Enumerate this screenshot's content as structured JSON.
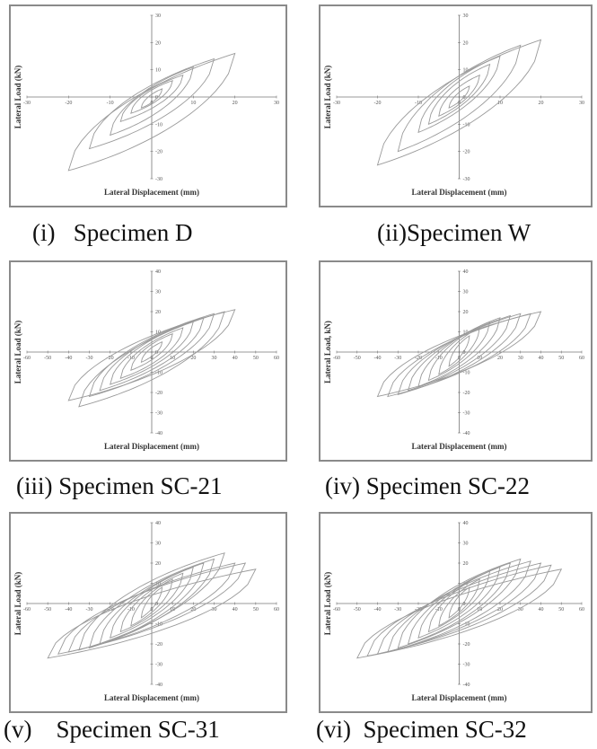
{
  "panels": [
    {
      "caption": "(i)   Specimen D",
      "chart_data": {
        "type": "line",
        "xlabel": "Lateral Displacement (mm)",
        "ylabel": "Lateral Load (kN)",
        "xlim": [
          -30,
          30
        ],
        "ylim": [
          -30,
          30
        ],
        "xticks": [
          -30,
          -20,
          -10,
          0,
          10,
          20,
          30
        ],
        "yticks": [
          -30,
          -20,
          -10,
          0,
          10,
          20,
          30
        ],
        "grid": false,
        "loops": [
          {
            "dpos": 2.5,
            "dneg": -2.5,
            "fpos": 3,
            "fneg": -4
          },
          {
            "dpos": 5,
            "dneg": -5,
            "fpos": 6,
            "fneg": -6
          },
          {
            "dpos": 7.5,
            "dneg": -7.5,
            "fpos": 8,
            "fneg": -9
          },
          {
            "dpos": 10,
            "dneg": -10,
            "fpos": 11,
            "fneg": -14
          },
          {
            "dpos": 15,
            "dneg": -15,
            "fpos": 14,
            "fneg": -19
          },
          {
            "dpos": 20,
            "dneg": -20,
            "fpos": 16,
            "fneg": -27
          }
        ]
      }
    },
    {
      "caption": "(ii)Specimen W",
      "chart_data": {
        "type": "line",
        "xlabel": "Lateral Displacement (mm)",
        "ylabel": "Lateral Load (kN)",
        "xlim": [
          -30,
          30
        ],
        "ylim": [
          -30,
          30
        ],
        "xticks": [
          -30,
          -20,
          -10,
          0,
          10,
          20,
          30
        ],
        "yticks": [
          -30,
          -20,
          -10,
          0,
          10,
          20,
          30
        ],
        "grid": false,
        "loops": [
          {
            "dpos": 2.5,
            "dneg": -2.5,
            "fpos": 4,
            "fneg": -4
          },
          {
            "dpos": 5,
            "dneg": -5,
            "fpos": 8,
            "fneg": -7
          },
          {
            "dpos": 7.5,
            "dneg": -7.5,
            "fpos": 12,
            "fneg": -10
          },
          {
            "dpos": 10,
            "dneg": -10,
            "fpos": 15,
            "fneg": -13
          },
          {
            "dpos": 15,
            "dneg": -15,
            "fpos": 19,
            "fneg": -20
          },
          {
            "dpos": 20,
            "dneg": -20,
            "fpos": 21,
            "fneg": -25
          }
        ]
      }
    },
    {
      "caption": "(iii) Specimen SC-21",
      "chart_data": {
        "type": "line",
        "xlabel": "Lateral Displacement (mm)",
        "ylabel": "Lateral Load (kN)",
        "xlim": [
          -60,
          60
        ],
        "ylim": [
          -40,
          40
        ],
        "xticks": [
          -60,
          -50,
          -40,
          -30,
          -20,
          -10,
          0,
          10,
          20,
          30,
          40,
          50,
          60
        ],
        "yticks": [
          -40,
          -30,
          -20,
          -10,
          0,
          10,
          20,
          30,
          40
        ],
        "grid": false,
        "loops": [
          {
            "dpos": 5,
            "dneg": -5,
            "fpos": 5,
            "fneg": -5
          },
          {
            "dpos": 10,
            "dneg": -10,
            "fpos": 9,
            "fneg": -9
          },
          {
            "dpos": 15,
            "dneg": -15,
            "fpos": 12,
            "fneg": -13
          },
          {
            "dpos": 20,
            "dneg": -20,
            "fpos": 15,
            "fneg": -16
          },
          {
            "dpos": 25,
            "dneg": -25,
            "fpos": 17,
            "fneg": -19
          },
          {
            "dpos": 30,
            "dneg": -30,
            "fpos": 19,
            "fneg": -22
          },
          {
            "dpos": 35,
            "dneg": -35,
            "fpos": 20,
            "fneg": -27
          },
          {
            "dpos": 40,
            "dneg": -40,
            "fpos": 21,
            "fneg": -24
          }
        ]
      }
    },
    {
      "caption": "(iv) Specimen SC-22",
      "chart_data": {
        "type": "line",
        "xlabel": "Lateral Displacement (mm)",
        "ylabel": "Lateral Load, kN)",
        "xlim": [
          -60,
          60
        ],
        "ylim": [
          -40,
          40
        ],
        "xticks": [
          -60,
          -50,
          -40,
          -30,
          -20,
          -10,
          0,
          10,
          20,
          30,
          40,
          50,
          60
        ],
        "yticks": [
          -40,
          -30,
          -20,
          -10,
          0,
          10,
          20,
          30,
          40
        ],
        "grid": false,
        "loops": [
          {
            "dpos": 5,
            "dneg": -5,
            "fpos": 8,
            "fneg": -7
          },
          {
            "dpos": 10,
            "dneg": -10,
            "fpos": 12,
            "fneg": -11
          },
          {
            "dpos": 15,
            "dneg": -15,
            "fpos": 15,
            "fneg": -14
          },
          {
            "dpos": 20,
            "dneg": -20,
            "fpos": 17,
            "fneg": -17
          },
          {
            "dpos": 25,
            "dneg": -25,
            "fpos": 18,
            "fneg": -19
          },
          {
            "dpos": 30,
            "dneg": -30,
            "fpos": 19,
            "fneg": -21
          },
          {
            "dpos": 35,
            "dneg": -35,
            "fpos": 19,
            "fneg": -22
          },
          {
            "dpos": 40,
            "dneg": -40,
            "fpos": 20,
            "fneg": -22
          }
        ]
      }
    },
    {
      "caption": "(v)    Specimen SC-31",
      "chart_data": {
        "type": "line",
        "xlabel": "Lateral Displacement (mm)",
        "ylabel": "Lateral Load (kN)",
        "xlim": [
          -60,
          60
        ],
        "ylim": [
          -40,
          40
        ],
        "xticks": [
          -60,
          -50,
          -40,
          -30,
          -20,
          -10,
          0,
          10,
          20,
          30,
          40,
          50,
          60
        ],
        "yticks": [
          -40,
          -30,
          -20,
          -10,
          0,
          10,
          20,
          30,
          40
        ],
        "grid": false,
        "loops": [
          {
            "dpos": 5,
            "dneg": -5,
            "fpos": 8,
            "fneg": -7
          },
          {
            "dpos": 10,
            "dneg": -10,
            "fpos": 12,
            "fneg": -11
          },
          {
            "dpos": 15,
            "dneg": -15,
            "fpos": 15,
            "fneg": -14
          },
          {
            "dpos": 20,
            "dneg": -20,
            "fpos": 18,
            "fneg": -17
          },
          {
            "dpos": 25,
            "dneg": -25,
            "fpos": 20,
            "fneg": -20
          },
          {
            "dpos": 30,
            "dneg": -30,
            "fpos": 22,
            "fneg": -22
          },
          {
            "dpos": 35,
            "dneg": -35,
            "fpos": 25,
            "fneg": -23
          },
          {
            "dpos": 40,
            "dneg": -40,
            "fpos": 20,
            "fneg": -24
          },
          {
            "dpos": 45,
            "dneg": -45,
            "fpos": 20,
            "fneg": -25
          },
          {
            "dpos": 50,
            "dneg": -50,
            "fpos": 17,
            "fneg": -27
          }
        ]
      }
    },
    {
      "caption": "(vi)  Specimen SC-32",
      "chart_data": {
        "type": "line",
        "xlabel": "Lateral Displacement (mm)",
        "ylabel": "Lateral Load (kN)",
        "xlim": [
          -60,
          60
        ],
        "ylim": [
          -40,
          40
        ],
        "xticks": [
          -60,
          -50,
          -40,
          -30,
          -20,
          -10,
          0,
          10,
          20,
          30,
          40,
          50,
          60
        ],
        "yticks": [
          -40,
          -30,
          -20,
          -10,
          0,
          10,
          20,
          30,
          40
        ],
        "grid": false,
        "loops": [
          {
            "dpos": 5,
            "dneg": -5,
            "fpos": 8,
            "fneg": -7
          },
          {
            "dpos": 10,
            "dneg": -10,
            "fpos": 12,
            "fneg": -11
          },
          {
            "dpos": 15,
            "dneg": -15,
            "fpos": 16,
            "fneg": -14
          },
          {
            "dpos": 20,
            "dneg": -20,
            "fpos": 18,
            "fneg": -17
          },
          {
            "dpos": 25,
            "dneg": -25,
            "fpos": 20,
            "fneg": -20
          },
          {
            "dpos": 30,
            "dneg": -30,
            "fpos": 22,
            "fneg": -22
          },
          {
            "dpos": 35,
            "dneg": -35,
            "fpos": 21,
            "fneg": -24
          },
          {
            "dpos": 40,
            "dneg": -40,
            "fpos": 20,
            "fneg": -25
          },
          {
            "dpos": 45,
            "dneg": -45,
            "fpos": 19,
            "fneg": -26
          },
          {
            "dpos": 50,
            "dneg": -50,
            "fpos": 17,
            "fneg": -27
          }
        ]
      }
    }
  ]
}
